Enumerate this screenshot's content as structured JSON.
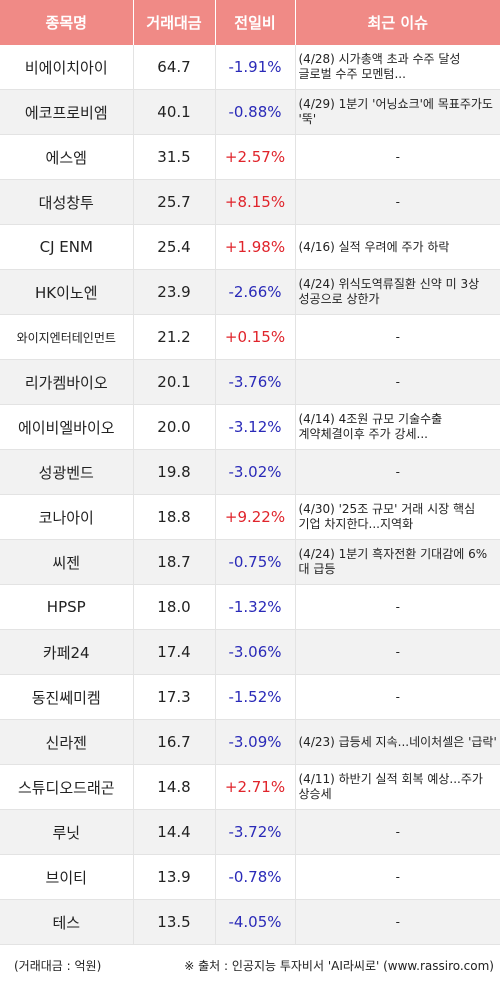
{
  "headers": [
    "종목명",
    "거래대금",
    "전일비",
    "최근 이슈"
  ],
  "rows": [
    {
      "name": "비에이치아이",
      "vol": "64.7",
      "chg": "-1.91%",
      "dir": "down",
      "issue": "(4/28) 시가총액 초과 수주 달성 글로벌 수주 모멘텀..."
    },
    {
      "name": "에코프로비엠",
      "vol": "40.1",
      "chg": "-0.88%",
      "dir": "down",
      "issue": "(4/29) 1분기 '어닝쇼크'에 목표주가도 '뚝'"
    },
    {
      "name": "에스엠",
      "vol": "31.5",
      "chg": "+2.57%",
      "dir": "up",
      "issue": "-"
    },
    {
      "name": "대성창투",
      "vol": "25.7",
      "chg": "+8.15%",
      "dir": "up",
      "issue": "-"
    },
    {
      "name": "CJ ENM",
      "vol": "25.4",
      "chg": "+1.98%",
      "dir": "up",
      "issue": "(4/16) 실적 우려에 주가 하락"
    },
    {
      "name": "HK이노엔",
      "vol": "23.9",
      "chg": "-2.66%",
      "dir": "down",
      "issue": "(4/24) 위식도역류질환 신약 미 3상 성공으로 상한가"
    },
    {
      "name": "와이지엔터테인먼트",
      "vol": "21.2",
      "chg": "+0.15%",
      "dir": "up",
      "issue": "-",
      "small": true
    },
    {
      "name": "리가켐바이오",
      "vol": "20.1",
      "chg": "-3.76%",
      "dir": "down",
      "issue": "-"
    },
    {
      "name": "에이비엘바이오",
      "vol": "20.0",
      "chg": "-3.12%",
      "dir": "down",
      "issue": "(4/14) 4조원 규모 기술수출 계약체결이후 주가 강세..."
    },
    {
      "name": "성광벤드",
      "vol": "19.8",
      "chg": "-3.02%",
      "dir": "down",
      "issue": "-"
    },
    {
      "name": "코나아이",
      "vol": "18.8",
      "chg": "+9.22%",
      "dir": "up",
      "issue": "(4/30) '25조 규모' 거래 시장 핵심 기업 차지한다...지역화"
    },
    {
      "name": "씨젠",
      "vol": "18.7",
      "chg": "-0.75%",
      "dir": "down",
      "issue": "(4/24) 1분기 흑자전환 기대감에 6%대 급등"
    },
    {
      "name": "HPSP",
      "vol": "18.0",
      "chg": "-1.32%",
      "dir": "down",
      "issue": "-"
    },
    {
      "name": "카페24",
      "vol": "17.4",
      "chg": "-3.06%",
      "dir": "down",
      "issue": "-"
    },
    {
      "name": "동진쎄미켐",
      "vol": "17.3",
      "chg": "-1.52%",
      "dir": "down",
      "issue": "-"
    },
    {
      "name": "신라젠",
      "vol": "16.7",
      "chg": "-3.09%",
      "dir": "down",
      "issue": "(4/23) 급등세 지속...네이처셀은 '급락'"
    },
    {
      "name": "스튜디오드래곤",
      "vol": "14.8",
      "chg": "+2.71%",
      "dir": "up",
      "issue": "(4/11) 하반기 실적 회복 예상...주가 상승세"
    },
    {
      "name": "루닛",
      "vol": "14.4",
      "chg": "-3.72%",
      "dir": "down",
      "issue": "-"
    },
    {
      "name": "브이티",
      "vol": "13.9",
      "chg": "-0.78%",
      "dir": "down",
      "issue": "-"
    },
    {
      "name": "테스",
      "vol": "13.5",
      "chg": "-4.05%",
      "dir": "down",
      "issue": "-"
    }
  ],
  "footer": {
    "unit": "(거래대금 : 억원)",
    "source": "※ 출처 : 인공지능 투자비서 'AI라씨로' (www.rassiro.com)"
  },
  "colors": {
    "header_bg": "#f08a86",
    "up": "#e0242b",
    "down": "#2a2ab8"
  }
}
